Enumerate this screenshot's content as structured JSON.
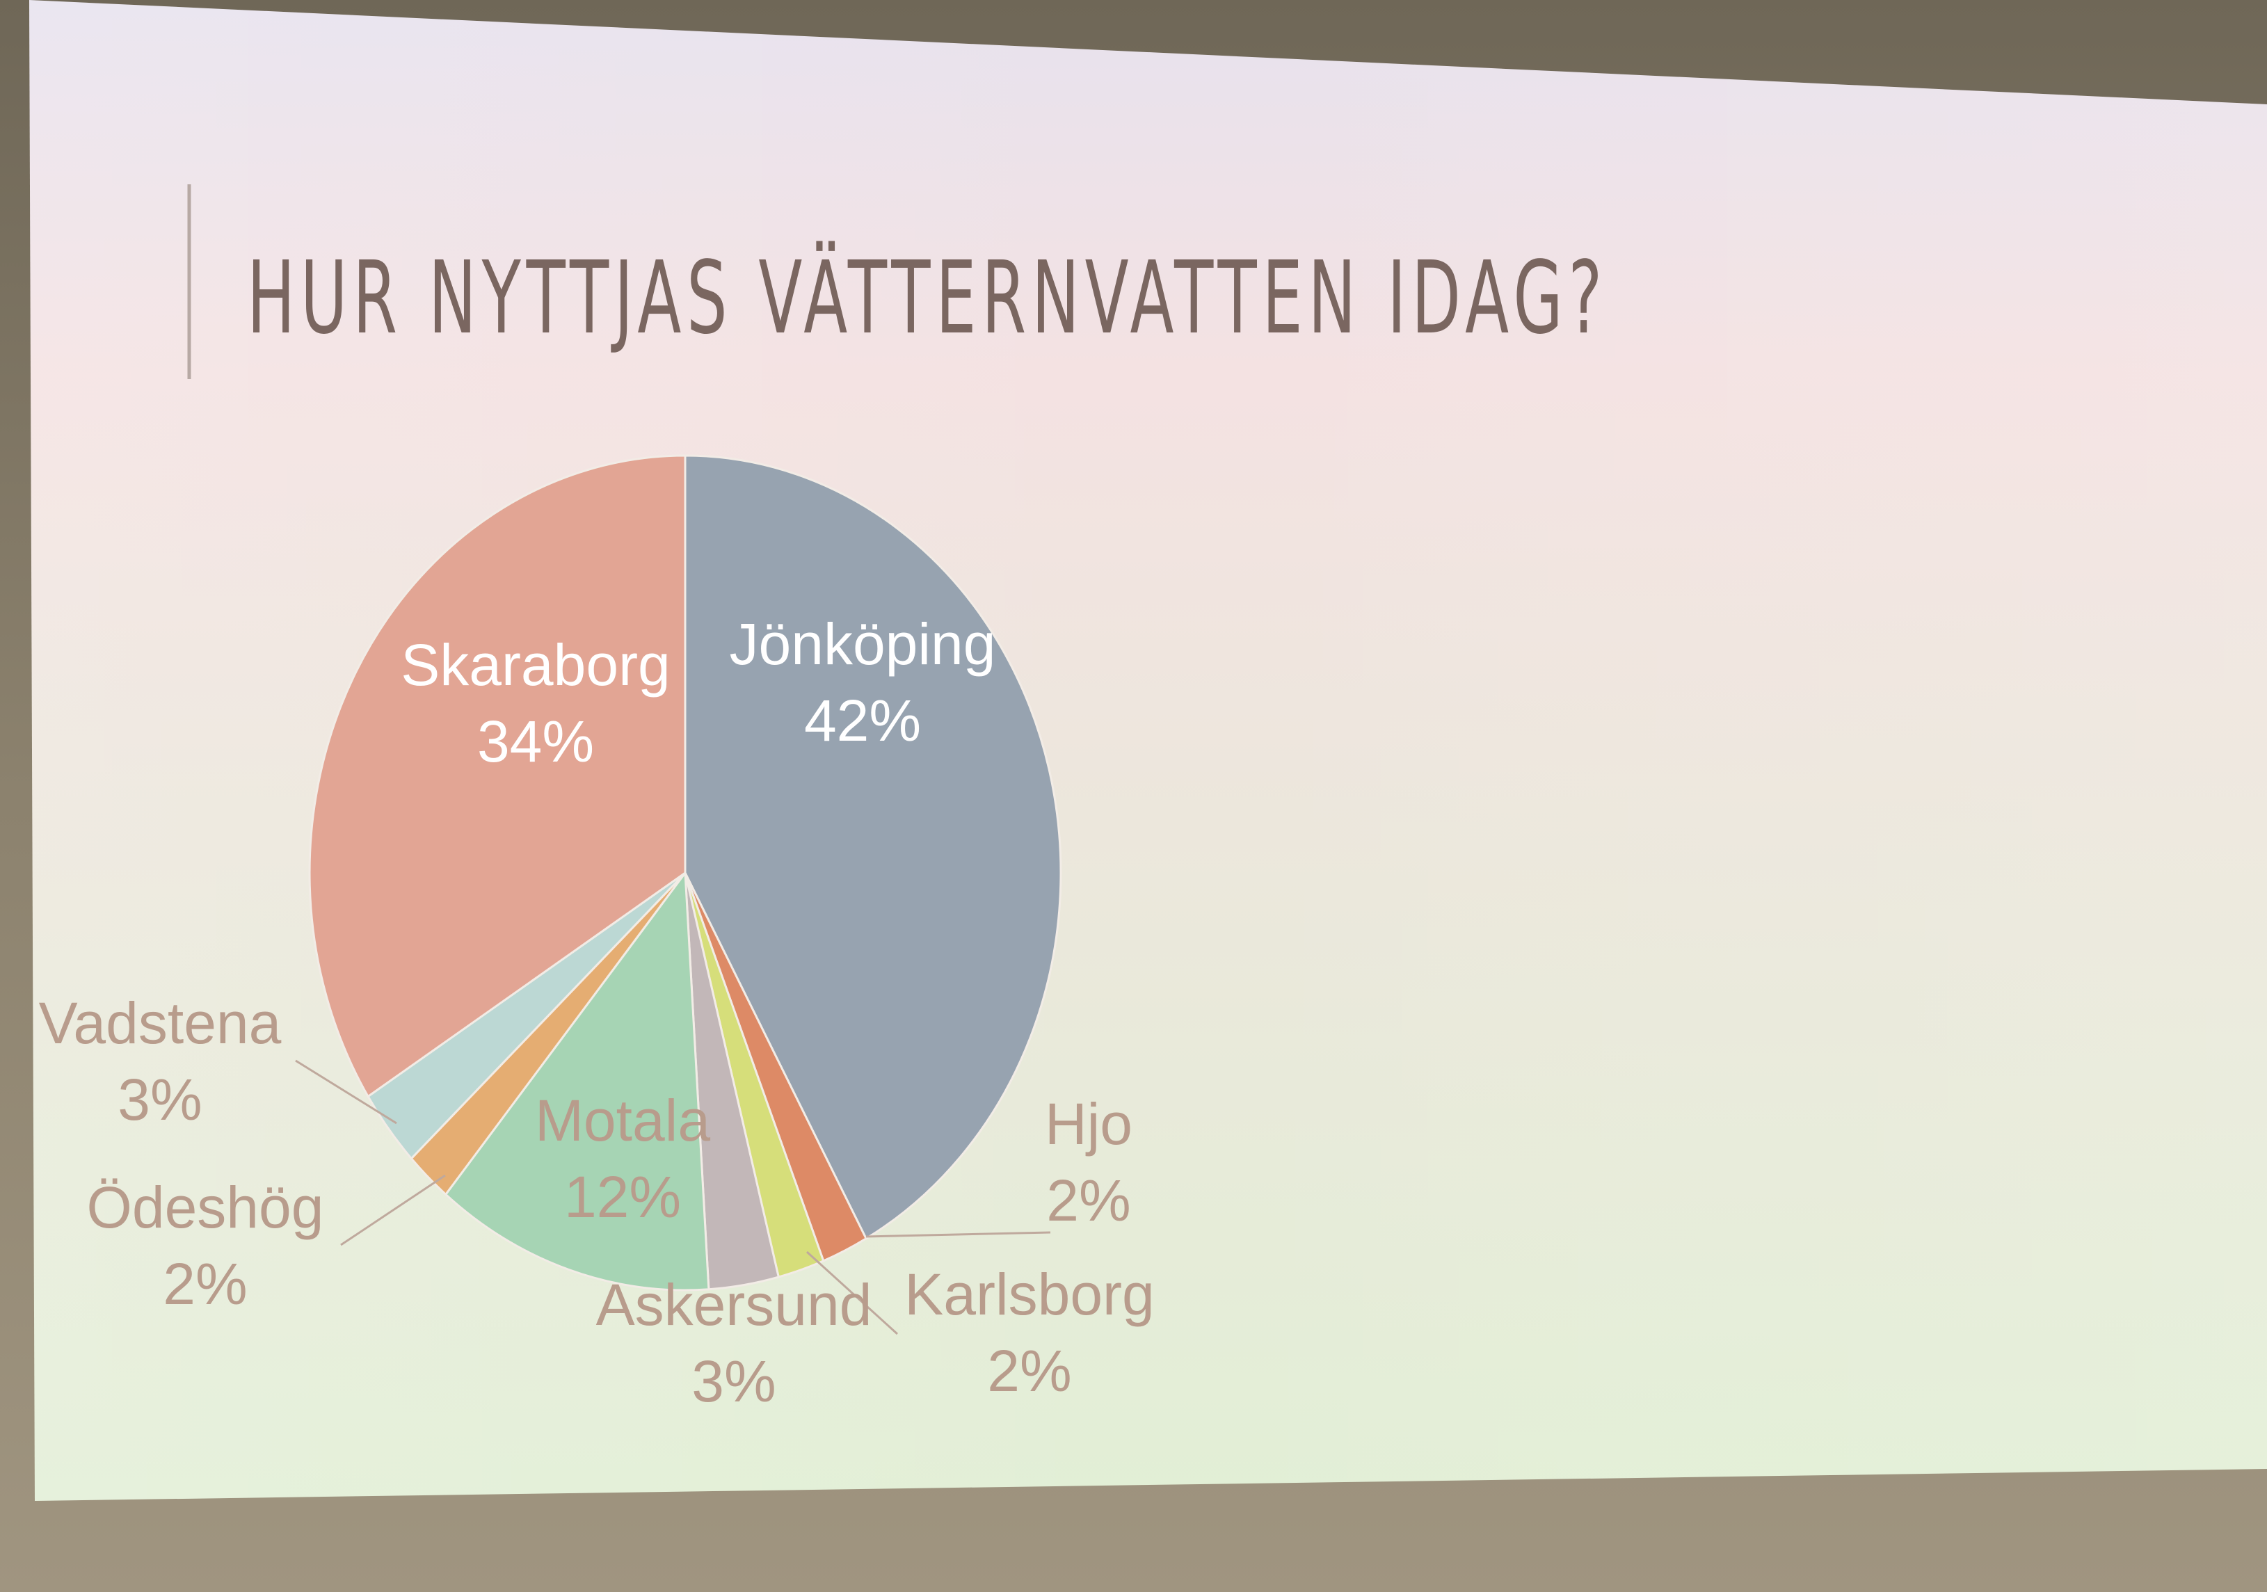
{
  "slide": {
    "title": "HUR NYTTJAS VÄTTERNVATTEN IDAG?"
  },
  "chart_data": {
    "type": "pie",
    "title": "",
    "start_angle_deg": 0,
    "direction": "clockwise",
    "labels_position": "mixed: inside for large slices, outside with leader lines for small slices",
    "slices": [
      {
        "label": "Jönköping",
        "value": 42,
        "pct_label": "42%",
        "color": "#97a3b0"
      },
      {
        "label": "Hjo",
        "value": 2,
        "pct_label": "2%",
        "color": "#dd8a66"
      },
      {
        "label": "Karlsborg",
        "value": 2,
        "pct_label": "2%",
        "color": "#d6de7a"
      },
      {
        "label": "Askersund",
        "value": 3,
        "pct_label": "3%",
        "color": "#c2b7b8"
      },
      {
        "label": "Motala",
        "value": 12,
        "pct_label": "12%",
        "color": "#a6d4b4"
      },
      {
        "label": "Ödeshög",
        "value": 2,
        "pct_label": "2%",
        "color": "#e5ad72"
      },
      {
        "label": "Vadstena",
        "value": 3,
        "pct_label": "3%",
        "color": "#bcd8d4"
      },
      {
        "label": "Skaraborg",
        "value": 34,
        "pct_label": "34%",
        "color": "#e2a594"
      }
    ],
    "label_color_inside": "#ffffff",
    "label_color_outside": "#b89c8c"
  }
}
